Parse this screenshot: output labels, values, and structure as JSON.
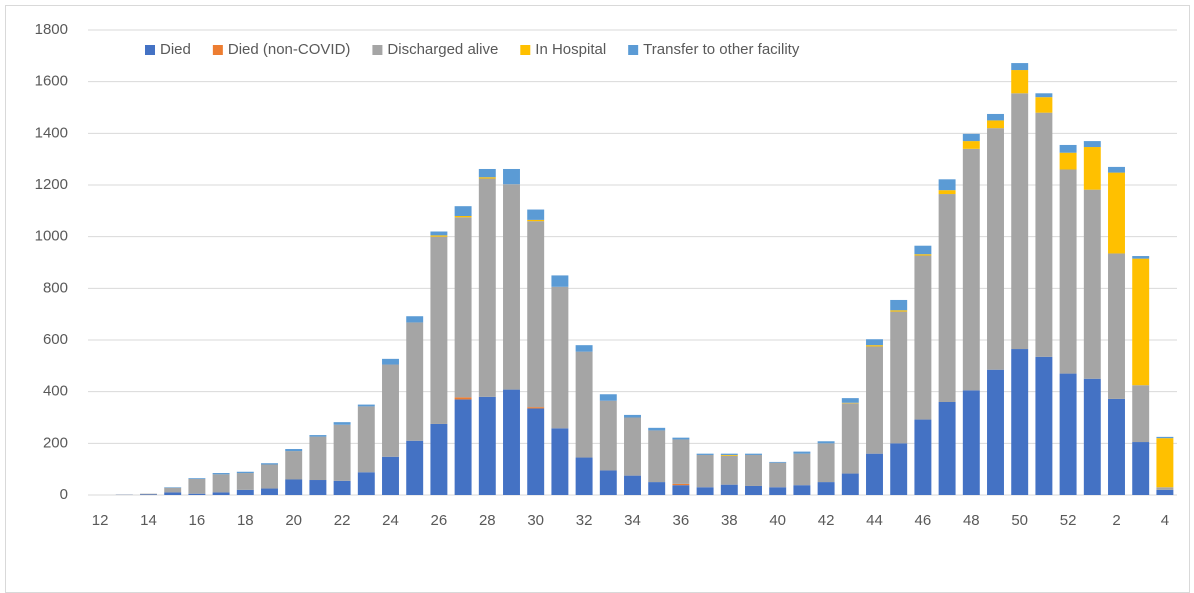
{
  "chart_data": {
    "type": "stacked_bar",
    "categories": [
      "12",
      null,
      "14",
      null,
      "16",
      null,
      "18",
      null,
      "20",
      null,
      "22",
      null,
      "24",
      null,
      "26",
      null,
      "28",
      null,
      "30",
      null,
      "32",
      null,
      "34",
      null,
      "36",
      null,
      "38",
      null,
      "40",
      null,
      "42",
      null,
      "44",
      null,
      "46",
      null,
      "48",
      null,
      "50",
      null,
      "52",
      null,
      "2",
      null,
      "4"
    ],
    "series": [
      {
        "name": "Died",
        "color": "#4472c4",
        "values": [
          0,
          1,
          2,
          10,
          5,
          10,
          20,
          25,
          60,
          58,
          55,
          88,
          148,
          210,
          275,
          370,
          380,
          408,
          335,
          258,
          145,
          95,
          75,
          50,
          38,
          30,
          40,
          35,
          30,
          38,
          50,
          83,
          160,
          200,
          292,
          360,
          405,
          485,
          565,
          535,
          470,
          450,
          372,
          205,
          20
        ]
      },
      {
        "name": "Died (non-COVID)",
        "color": "#ed7d31",
        "values": [
          0,
          0,
          0,
          0,
          0,
          0,
          0,
          0,
          0,
          0,
          0,
          0,
          0,
          0,
          0,
          8,
          0,
          0,
          5,
          0,
          0,
          0,
          0,
          0,
          5,
          0,
          0,
          0,
          0,
          0,
          0,
          0,
          0,
          0,
          0,
          0,
          0,
          0,
          0,
          0,
          0,
          0,
          0,
          0,
          0
        ]
      },
      {
        "name": "Discharged alive",
        "color": "#a5a5a5",
        "values": [
          0,
          1,
          3,
          18,
          57,
          70,
          65,
          93,
          110,
          168,
          217,
          255,
          357,
          458,
          725,
          697,
          845,
          795,
          720,
          548,
          410,
          270,
          225,
          200,
          172,
          125,
          112,
          120,
          95,
          122,
          150,
          272,
          415,
          510,
          635,
          805,
          935,
          935,
          990,
          945,
          790,
          732,
          563,
          220,
          10
        ]
      },
      {
        "name": "In Hospital",
        "color": "#ffc000",
        "values": [
          0,
          0,
          0,
          0,
          0,
          0,
          0,
          0,
          0,
          0,
          0,
          0,
          0,
          0,
          5,
          5,
          5,
          0,
          5,
          0,
          0,
          0,
          0,
          0,
          0,
          0,
          3,
          0,
          0,
          0,
          0,
          2,
          5,
          5,
          5,
          15,
          30,
          30,
          90,
          60,
          65,
          165,
          313,
          490,
          190
        ]
      },
      {
        "name": "Transfer to other facility",
        "color": "#5b9bd5",
        "values": [
          0,
          0,
          0,
          2,
          3,
          5,
          5,
          5,
          8,
          6,
          10,
          7,
          22,
          24,
          15,
          38,
          32,
          59,
          40,
          44,
          25,
          25,
          10,
          10,
          7,
          5,
          5,
          5,
          3,
          8,
          8,
          18,
          23,
          40,
          33,
          42,
          28,
          25,
          27,
          15,
          30,
          23,
          22,
          10,
          5
        ]
      }
    ],
    "ylim": [
      0,
      1800
    ],
    "yticks": [
      0,
      200,
      400,
      600,
      800,
      1000,
      1200,
      1400,
      1600,
      1800
    ],
    "grid": true,
    "legend": "top"
  }
}
